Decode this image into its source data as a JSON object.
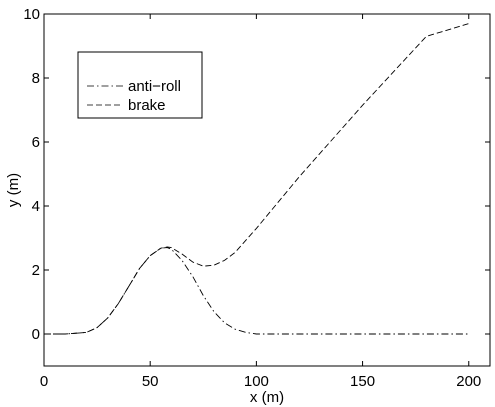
{
  "chart_data": {
    "type": "line",
    "title": "",
    "xlabel": "x (m)",
    "ylabel": "y (m)",
    "xlim": [
      0,
      210
    ],
    "ylim": [
      -1,
      10
    ],
    "xticks": [
      0,
      50,
      100,
      150,
      200
    ],
    "yticks": [
      0,
      2,
      4,
      6,
      8,
      10
    ],
    "grid": false,
    "legend_position": "top-left",
    "series": [
      {
        "name": "anti−roll",
        "dash": "dash-dot",
        "color": "#000000",
        "x": [
          0,
          10,
          20,
          25,
          30,
          35,
          40,
          45,
          50,
          55,
          58,
          60,
          65,
          70,
          75,
          80,
          85,
          90,
          95,
          100,
          110,
          150,
          200
        ],
        "y": [
          0,
          0,
          0.05,
          0.2,
          0.5,
          0.95,
          1.5,
          2.05,
          2.45,
          2.68,
          2.7,
          2.65,
          2.3,
          1.8,
          1.2,
          0.7,
          0.35,
          0.15,
          0.05,
          0,
          0,
          0,
          0
        ]
      },
      {
        "name": "brake",
        "dash": "dashed",
        "color": "#000000",
        "x": [
          0,
          10,
          20,
          25,
          30,
          35,
          40,
          45,
          50,
          55,
          58,
          60,
          65,
          70,
          75,
          80,
          85,
          90,
          100,
          120,
          150,
          180,
          200
        ],
        "y": [
          0,
          0,
          0.05,
          0.2,
          0.5,
          0.95,
          1.5,
          2.05,
          2.45,
          2.68,
          2.72,
          2.7,
          2.5,
          2.25,
          2.12,
          2.15,
          2.3,
          2.55,
          3.3,
          4.9,
          7.15,
          9.3,
          9.7
        ]
      }
    ]
  }
}
